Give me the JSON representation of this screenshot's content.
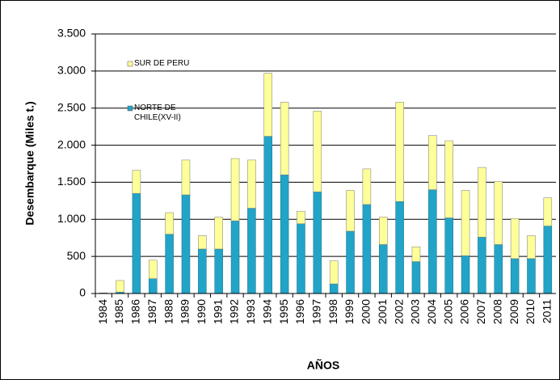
{
  "chart_data": {
    "type": "stacked-bar",
    "x_label": "AÑOS",
    "y_label": "Desembarque (Miles t.)",
    "categories": [
      "1984",
      "1985",
      "1986",
      "1987",
      "1988",
      "1989",
      "1990",
      "1991",
      "1992",
      "1993",
      "1994",
      "1995",
      "1996",
      "1997",
      "1998",
      "1999",
      "2000",
      "2001",
      "2002",
      "2003",
      "2004",
      "2005",
      "2006",
      "2007",
      "2008",
      "2009",
      "2010",
      "2011"
    ],
    "series": [
      {
        "name": "NORTE DE CHILE(XV-II)",
        "color": "#22a4c8",
        "values": [
          5,
          20,
          1350,
          200,
          800,
          1330,
          600,
          600,
          980,
          1150,
          2120,
          1600,
          940,
          1370,
          130,
          840,
          1200,
          660,
          1240,
          430,
          1400,
          1020,
          510,
          760,
          660,
          470,
          470,
          910
        ]
      },
      {
        "name": "SUR DE PERÚ",
        "color": "#ffff99",
        "values": [
          3,
          155,
          310,
          250,
          290,
          470,
          180,
          430,
          840,
          650,
          850,
          980,
          170,
          1090,
          310,
          550,
          480,
          370,
          1340,
          200,
          730,
          1040,
          880,
          940,
          850,
          540,
          310,
          380
        ]
      }
    ],
    "ylim": [
      0,
      3500
    ],
    "yticks": [
      0,
      500,
      {
        "value": 1000,
        "label": "1.000"
      },
      {
        "value": 1500,
        "label": "1.500"
      },
      {
        "value": 2000,
        "label": "2.000"
      },
      {
        "value": 2500,
        "label": "2.500"
      },
      {
        "value": 3000,
        "label": "3.000"
      },
      {
        "value": 3500,
        "label": "3.500"
      }
    ],
    "grid": true
  }
}
